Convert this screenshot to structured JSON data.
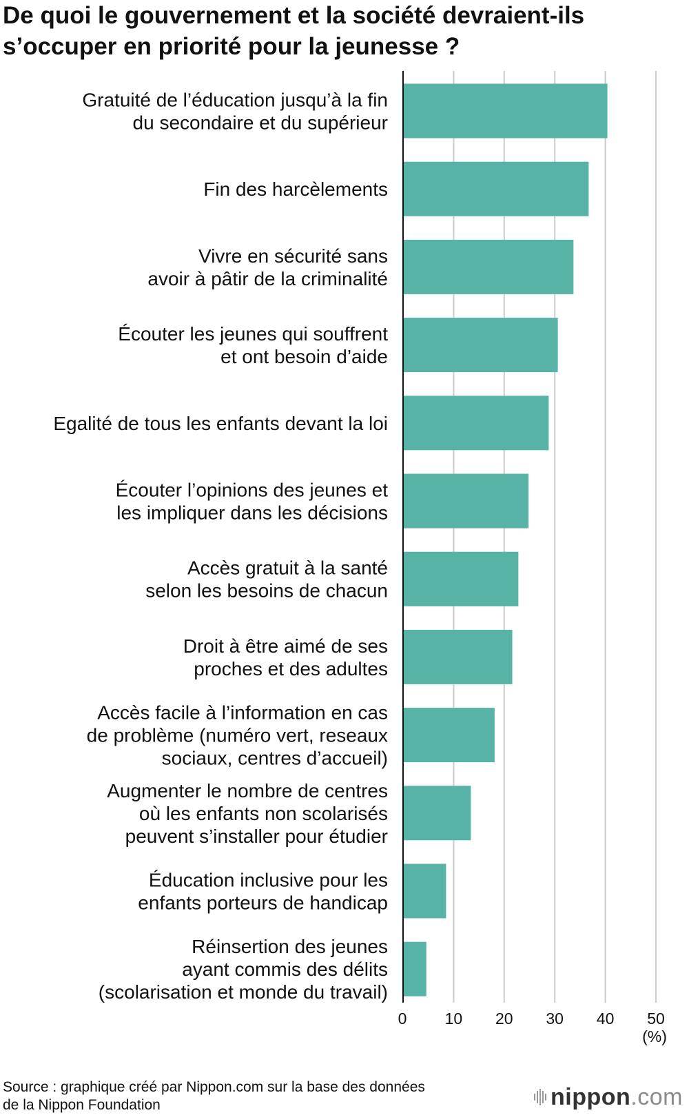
{
  "title_lines": [
    "De quoi le gouvernement et la société devraient-ils",
    "s’occuper en priorité pour la jeunesse ?"
  ],
  "source_lines": [
    "Source : graphique créé par Nippon.com sur la base des données",
    "de la Nippon Foundation"
  ],
  "brand": {
    "main": "nippon",
    "suffix": ".com"
  },
  "colors": {
    "bar": "#56b3a6",
    "grid": "#cccccc",
    "axis": "#111111"
  },
  "chart_data": {
    "type": "bar",
    "orientation": "horizontal",
    "categories": [
      [
        "Gratuité de l’éducation jusqu’à la fin",
        "du secondaire et du supérieur"
      ],
      [
        "Fin des harcèlements"
      ],
      [
        "Vivre en sécurité sans",
        "avoir à pâtir de la criminalité"
      ],
      [
        "Écouter les jeunes qui souffrent",
        "et ont besoin d’aide"
      ],
      [
        "Egalité de tous les enfants devant la loi"
      ],
      [
        "Écouter l’opinions des jeunes et",
        "les impliquer dans les décisions"
      ],
      [
        "Accès gratuit à la santé",
        "selon les besoins de chacun"
      ],
      [
        "Droit à être aimé de ses",
        "proches et des adultes"
      ],
      [
        "Accès facile à l’information en cas",
        "de problème (numéro vert, reseaux",
        "sociaux, centres d’accueil)"
      ],
      [
        "Augmenter le nombre de centres",
        "où les enfants non scolarisés",
        "peuvent s’installer pour étudier"
      ],
      [
        "Éducation inclusive pour les",
        "enfants porteurs de handicap"
      ],
      [
        "Réinsertion des jeunes",
        "ayant commis des délits",
        "(scolarisation et monde du travail)"
      ]
    ],
    "values": [
      40.4,
      36.7,
      33.7,
      30.6,
      28.8,
      24.8,
      22.8,
      21.6,
      18.1,
      13.4,
      8.5,
      4.6
    ],
    "xlim": [
      0,
      50
    ],
    "xticks": [
      "0",
      "10",
      "20",
      "30",
      "40",
      "50"
    ],
    "unit": "(%)",
    "grid": true
  }
}
